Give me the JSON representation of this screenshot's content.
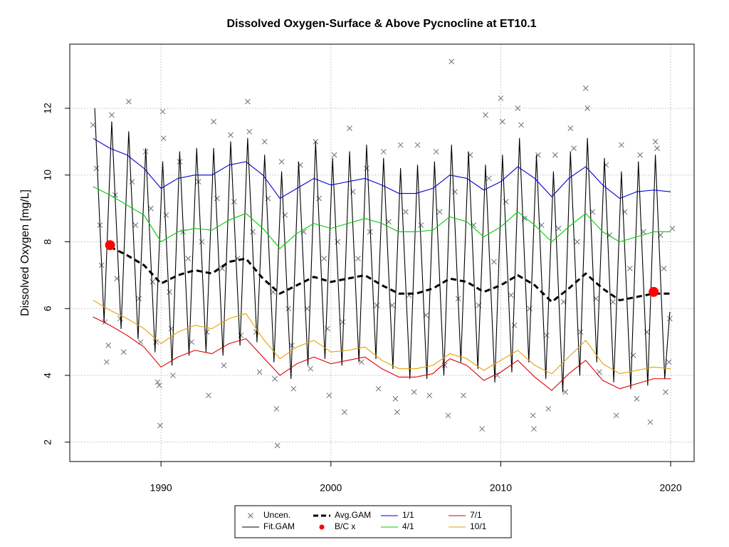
{
  "chart_data": {
    "type": "scatter",
    "title": "Dissolved Oxygen-Surface & Above Pycnocline at ET10.1",
    "y_label": "Dissolved Oxygen [mg/L]",
    "xlim": [
      1984.63,
      2021.38
    ],
    "ylim": [
      1.42,
      13.92
    ],
    "xticks": [
      1990,
      2000,
      2010,
      2020
    ],
    "yticks": [
      2,
      4,
      6,
      8,
      10,
      12
    ],
    "grid": true,
    "legend": "bottom",
    "x": [
      1986,
      1987,
      1988,
      1989,
      1990,
      1991,
      1992,
      1993,
      1994,
      1995,
      1996,
      1997,
      1998,
      1999,
      2000,
      2001,
      2002,
      2003,
      2004,
      2005,
      2006,
      2007,
      2008,
      2009,
      2010,
      2011,
      2012,
      2013,
      2014,
      2015,
      2016,
      2017,
      2018,
      2019,
      2020
    ],
    "series": [
      {
        "name": "Uncen.",
        "color": "#666e80",
        "style": "cross",
        "x": [
          1986.0,
          1986.2,
          1986.4,
          1986.5,
          1986.7,
          1986.8,
          1986.9,
          1987.1,
          1987.3,
          1987.4,
          1987.6,
          1987.8,
          1988.1,
          1988.3,
          1988.5,
          1988.7,
          1988.8,
          1989.1,
          1989.4,
          1989.5,
          1989.7,
          1989.8,
          1989.9,
          1989.95,
          1990.1,
          1990.15,
          1990.3,
          1990.5,
          1990.6,
          1990.7,
          1991.1,
          1991.3,
          1991.6,
          1991.8,
          1992.2,
          1992.4,
          1992.7,
          1992.8,
          1993.1,
          1993.3,
          1993.6,
          1993.7,
          1994.1,
          1994.3,
          1994.5,
          1994.7,
          1995.1,
          1995.2,
          1995.4,
          1995.6,
          1995.8,
          1996.1,
          1996.3,
          1996.6,
          1996.7,
          1996.8,
          1996.85,
          1997.1,
          1997.3,
          1997.5,
          1997.7,
          1997.8,
          1998.2,
          1998.4,
          1998.6,
          1998.8,
          1999.1,
          1999.3,
          1999.6,
          1999.8,
          1999.9,
          2000.2,
          2000.4,
          2000.7,
          2000.8,
          2001.1,
          2001.3,
          2001.6,
          2001.8,
          2002.1,
          2002.3,
          2002.7,
          2002.8,
          2003.1,
          2003.4,
          2003.6,
          2003.8,
          2003.9,
          2004.1,
          2004.4,
          2004.6,
          2004.9,
          2005.1,
          2005.3,
          2005.6,
          2005.8,
          2006.2,
          2006.4,
          2006.7,
          2006.9,
          2007.1,
          2007.3,
          2007.5,
          2007.8,
          2008.2,
          2008.4,
          2008.7,
          2008.9,
          2009.1,
          2009.3,
          2009.6,
          2009.8,
          2010.0,
          2010.1,
          2010.3,
          2010.6,
          2010.8,
          2011.0,
          2011.2,
          2011.4,
          2011.7,
          2011.9,
          2011.95,
          2012.2,
          2012.4,
          2012.7,
          2012.8,
          2013.2,
          2013.4,
          2013.7,
          2013.8,
          2014.1,
          2014.3,
          2014.5,
          2014.7,
          2015.0,
          2015.1,
          2015.4,
          2015.6,
          2015.8,
          2016.2,
          2016.4,
          2016.6,
          2016.8,
          2017.1,
          2017.3,
          2017.6,
          2017.8,
          2018.0,
          2018.2,
          2018.4,
          2018.6,
          2018.8,
          2019.1,
          2019.2,
          2019.4,
          2019.6,
          2019.7,
          2019.9,
          2019.95,
          2020.1
        ],
        "values": [
          11.5,
          10.2,
          8.5,
          7.3,
          5.6,
          4.4,
          4.9,
          11.8,
          9.4,
          6.9,
          5.7,
          4.7,
          12.2,
          9.8,
          8.5,
          6.3,
          5.0,
          10.7,
          9.0,
          6.8,
          5.0,
          3.8,
          3.7,
          2.5,
          11.9,
          11.1,
          8.8,
          6.5,
          5.4,
          4.0,
          10.4,
          8.3,
          7.5,
          5.0,
          9.8,
          8.0,
          5.3,
          3.4,
          11.6,
          9.3,
          7.2,
          4.3,
          11.2,
          9.2,
          7.5,
          5.2,
          12.2,
          11.3,
          8.3,
          5.3,
          4.1,
          11.0,
          9.3,
          6.5,
          3.9,
          3.0,
          1.9,
          10.4,
          8.8,
          6.0,
          4.9,
          3.6,
          10.3,
          8.3,
          6.0,
          4.2,
          11.0,
          9.3,
          7.5,
          5.4,
          3.4,
          10.6,
          8.0,
          5.6,
          2.9,
          11.4,
          9.5,
          7.5,
          4.4,
          10.2,
          8.3,
          6.1,
          3.6,
          10.7,
          8.6,
          6.1,
          3.3,
          2.9,
          10.9,
          8.9,
          6.4,
          3.5,
          10.9,
          8.5,
          5.8,
          3.4,
          10.7,
          8.9,
          4.3,
          2.8,
          13.4,
          9.5,
          6.3,
          3.4,
          10.6,
          8.5,
          6.1,
          2.4,
          11.8,
          9.9,
          7.4,
          4.0,
          12.3,
          11.6,
          9.2,
          6.4,
          5.5,
          12.0,
          11.5,
          8.7,
          6.0,
          2.8,
          2.4,
          10.6,
          8.5,
          5.2,
          3.0,
          10.6,
          8.4,
          6.2,
          3.5,
          11.4,
          10.8,
          8.0,
          5.3,
          12.6,
          12.0,
          8.9,
          6.3,
          4.1,
          10.3,
          8.2,
          6.2,
          2.8,
          10.9,
          8.9,
          7.2,
          4.6,
          3.3,
          10.6,
          8.3,
          5.3,
          2.6,
          11.0,
          10.8,
          8.2,
          7.2,
          3.5,
          4.4,
          5.7,
          8.4
        ]
      },
      {
        "name": "Fit.GAM",
        "color": "#000000",
        "style": "line",
        "x": [
          1986.1,
          1986.65,
          1987.1,
          1987.65,
          1988.1,
          1988.65,
          1989.1,
          1989.65,
          1990.1,
          1990.65,
          1991.1,
          1991.65,
          1992.1,
          1992.65,
          1993.1,
          1993.65,
          1994.1,
          1994.65,
          1995.1,
          1995.65,
          1996.1,
          1996.65,
          1997.1,
          1997.65,
          1998.1,
          1998.65,
          1999.1,
          1999.65,
          2000.1,
          2000.65,
          2001.1,
          2001.65,
          2002.1,
          2002.65,
          2003.1,
          2003.65,
          2004.1,
          2004.65,
          2005.1,
          2005.65,
          2006.1,
          2006.65,
          2007.1,
          2007.65,
          2008.1,
          2008.65,
          2009.1,
          2009.65,
          2010.1,
          2010.65,
          2011.1,
          2011.65,
          2012.1,
          2012.65,
          2013.1,
          2013.65,
          2014.1,
          2014.65,
          2015.1,
          2015.65,
          2016.1,
          2016.65,
          2017.1,
          2017.65,
          2018.1,
          2018.65,
          2019.1,
          2019.65,
          2019.95
        ],
        "values": [
          12.0,
          5.6,
          11.6,
          5.4,
          11.3,
          5.1,
          10.8,
          4.7,
          10.4,
          4.3,
          10.7,
          4.6,
          10.8,
          4.7,
          10.8,
          4.6,
          11.0,
          4.9,
          11.1,
          5.0,
          10.6,
          4.4,
          10.1,
          3.9,
          10.4,
          4.3,
          11.0,
          4.5,
          10.5,
          4.3,
          10.7,
          4.4,
          10.9,
          4.5,
          10.5,
          4.2,
          10.2,
          3.9,
          10.3,
          3.9,
          10.4,
          4.0,
          10.9,
          4.4,
          10.7,
          4.2,
          10.3,
          3.8,
          10.6,
          4.1,
          11.1,
          4.4,
          10.6,
          3.9,
          10.1,
          3.5,
          10.7,
          4.0,
          11.1,
          4.4,
          10.5,
          3.8,
          10.1,
          3.6,
          10.4,
          3.7,
          10.6,
          3.9,
          5.9
        ]
      },
      {
        "name": "Avg.GAM",
        "color": "#000000",
        "style": "dashed",
        "values": [
          null,
          7.85,
          7.6,
          7.3,
          6.75,
          7.0,
          7.15,
          7.05,
          7.4,
          7.5,
          6.9,
          6.45,
          6.7,
          6.95,
          6.8,
          6.9,
          7.0,
          6.7,
          6.45,
          6.45,
          6.6,
          6.9,
          6.8,
          6.5,
          6.7,
          7.0,
          6.7,
          6.2,
          6.6,
          7.05,
          6.6,
          6.25,
          6.35,
          6.45,
          6.45
        ]
      },
      {
        "name": "B/C x",
        "color": "#ff0000",
        "style": "dot",
        "x": [
          1987,
          2019
        ],
        "values": [
          7.9,
          6.5
        ]
      },
      {
        "name": "1/1",
        "color": "#0000cc",
        "style": "line",
        "values": [
          11.1,
          10.8,
          10.6,
          10.2,
          9.6,
          9.9,
          10.0,
          10.0,
          10.3,
          10.4,
          10.0,
          9.3,
          9.6,
          9.9,
          9.7,
          9.8,
          9.9,
          9.7,
          9.45,
          9.45,
          9.6,
          10.0,
          9.9,
          9.55,
          9.8,
          10.25,
          9.9,
          9.35,
          9.9,
          10.25,
          9.7,
          9.3,
          9.5,
          9.55,
          9.5
        ]
      },
      {
        "name": "4/1",
        "color": "#00cc00",
        "style": "line",
        "values": [
          9.65,
          9.4,
          9.1,
          8.8,
          8.0,
          8.3,
          8.4,
          8.35,
          8.65,
          8.85,
          8.4,
          7.8,
          8.25,
          8.55,
          8.4,
          8.55,
          8.7,
          8.55,
          8.3,
          8.3,
          8.35,
          8.75,
          8.6,
          8.15,
          8.45,
          8.9,
          8.5,
          8.0,
          8.45,
          8.85,
          8.3,
          8.0,
          8.15,
          8.3,
          8.3
        ]
      },
      {
        "name": "7/1",
        "color": "#dd0000",
        "style": "line",
        "values": [
          5.75,
          5.5,
          5.2,
          4.85,
          4.25,
          4.55,
          4.75,
          4.65,
          4.95,
          5.1,
          4.55,
          4.0,
          4.35,
          4.55,
          4.35,
          4.45,
          4.55,
          4.2,
          3.95,
          3.95,
          4.05,
          4.5,
          4.3,
          3.85,
          4.1,
          4.45,
          3.95,
          3.55,
          4.05,
          4.45,
          3.85,
          3.6,
          3.75,
          3.9,
          3.9
        ]
      },
      {
        "name": "10/1",
        "color": "#e6a000",
        "style": "line",
        "values": [
          6.25,
          5.95,
          5.7,
          5.4,
          4.95,
          5.3,
          5.5,
          5.4,
          5.7,
          5.85,
          5.1,
          4.5,
          4.85,
          5.05,
          4.7,
          4.75,
          4.85,
          4.45,
          4.2,
          4.2,
          4.3,
          4.65,
          4.5,
          4.15,
          4.45,
          4.75,
          4.3,
          4.05,
          4.55,
          5.05,
          4.35,
          4.05,
          4.15,
          4.25,
          4.2
        ]
      }
    ]
  }
}
